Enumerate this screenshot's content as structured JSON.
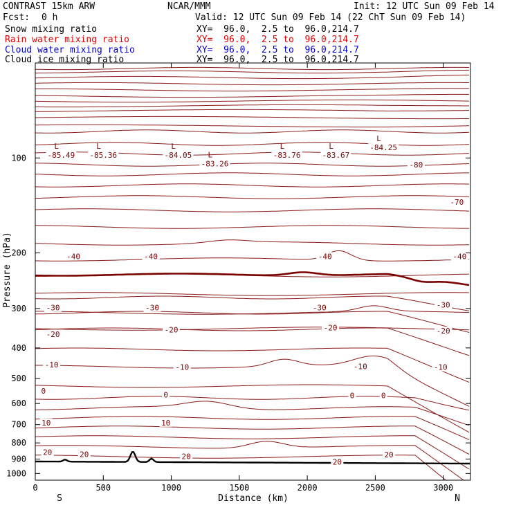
{
  "header": {
    "title": "CONTRAST 15km ARW",
    "center": "NCAR/MMM",
    "init": "Init: 12 UTC Sun 09 Feb 14",
    "fcst_label": "Fcst:",
    "fcst_value": "0 h",
    "valid": "Valid: 12 UTC Sun 09 Feb 14 (22 ChT Sun 09 Feb 14)"
  },
  "fields": [
    {
      "name": "Snow mixing ratio",
      "xy": "XY=  96.0,  2.5 to  96.0,214.7",
      "color": "#000000"
    },
    {
      "name": "Rain water mixing ratio",
      "xy": "XY=  96.0,  2.5 to  96.0,214.7",
      "color": "#e00000"
    },
    {
      "name": "Cloud water mixing ratio",
      "xy": "XY=  96.0,  2.5 to  96.0,214.7",
      "color": "#0000d0"
    },
    {
      "name": "Cloud ice mixing ratio",
      "xy": "XY=  96.0,  2.5 to  96.0,214.7",
      "color": "#000000"
    }
  ],
  "chart_data": {
    "type": "line",
    "subtype": "contour-cross-section",
    "xlabel": "Distance (km)",
    "ylabel": "Pressure (hPa)",
    "xlim": [
      0,
      3200
    ],
    "ylim_pressure": [
      1050,
      50
    ],
    "y_scale": "log",
    "x_ticks": [
      0,
      500,
      1000,
      1500,
      2000,
      2500,
      3000
    ],
    "y_ticks": [
      100,
      200,
      300,
      400,
      500,
      600,
      700,
      800,
      900,
      1000
    ],
    "x_end_labels": [
      "S",
      "N"
    ],
    "grid": false,
    "contour_color": "#8b1a1a",
    "zero_contour_color": "#7a0000",
    "terrain_color": "#000000",
    "contour_labels": [
      {
        "text": "-40",
        "x": 280,
        "p": 205
      },
      {
        "text": "-40",
        "x": 850,
        "p": 205
      },
      {
        "text": "-40",
        "x": 2130,
        "p": 205
      },
      {
        "text": "-40",
        "x": 3120,
        "p": 205
      },
      {
        "text": "-30",
        "x": 130,
        "p": 298
      },
      {
        "text": "-30",
        "x": 860,
        "p": 298
      },
      {
        "text": "-30",
        "x": 2090,
        "p": 298
      },
      {
        "text": "-30",
        "x": 3000,
        "p": 292
      },
      {
        "text": "-20",
        "x": 130,
        "p": 362
      },
      {
        "text": "-20",
        "x": 1000,
        "p": 350
      },
      {
        "text": "-20",
        "x": 2170,
        "p": 345
      },
      {
        "text": "-20",
        "x": 3000,
        "p": 353
      },
      {
        "text": "-10",
        "x": 120,
        "p": 452
      },
      {
        "text": "-10",
        "x": 1080,
        "p": 460
      },
      {
        "text": "-10",
        "x": 2390,
        "p": 458
      },
      {
        "text": "-10",
        "x": 2980,
        "p": 460
      },
      {
        "text": "-80",
        "x": 2800,
        "p": 105
      },
      {
        "text": "-70",
        "x": 3100,
        "p": 138
      },
      {
        "text": "0",
        "x": 60,
        "p": 548
      },
      {
        "text": "0",
        "x": 960,
        "p": 563
      },
      {
        "text": "0",
        "x": 2330,
        "p": 565
      },
      {
        "text": "0",
        "x": 2560,
        "p": 565
      },
      {
        "text": "10",
        "x": 80,
        "p": 690
      },
      {
        "text": "10",
        "x": 960,
        "p": 690
      },
      {
        "text": "20",
        "x": 90,
        "p": 855
      },
      {
        "text": "20",
        "x": 360,
        "p": 868
      },
      {
        "text": "20",
        "x": 1110,
        "p": 883
      },
      {
        "text": "20",
        "x": 2220,
        "p": 918
      },
      {
        "text": "20",
        "x": 2600,
        "p": 872
      }
    ],
    "lows": [
      {
        "label": "L",
        "value": "-85.49",
        "x": 190,
        "p": 94
      },
      {
        "label": "L",
        "value": "-85.36",
        "x": 500,
        "p": 94
      },
      {
        "label": "L",
        "value": "-84.05",
        "x": 1050,
        "p": 94
      },
      {
        "label": "L",
        "value": "-83.26",
        "x": 1320,
        "p": 100
      },
      {
        "label": "L",
        "value": "-83.76",
        "x": 1850,
        "p": 94
      },
      {
        "label": "L",
        "value": "-83.67",
        "x": 2210,
        "p": 94
      },
      {
        "label": "L",
        "value": "-84.25",
        "x": 2560,
        "p": 89
      }
    ]
  }
}
